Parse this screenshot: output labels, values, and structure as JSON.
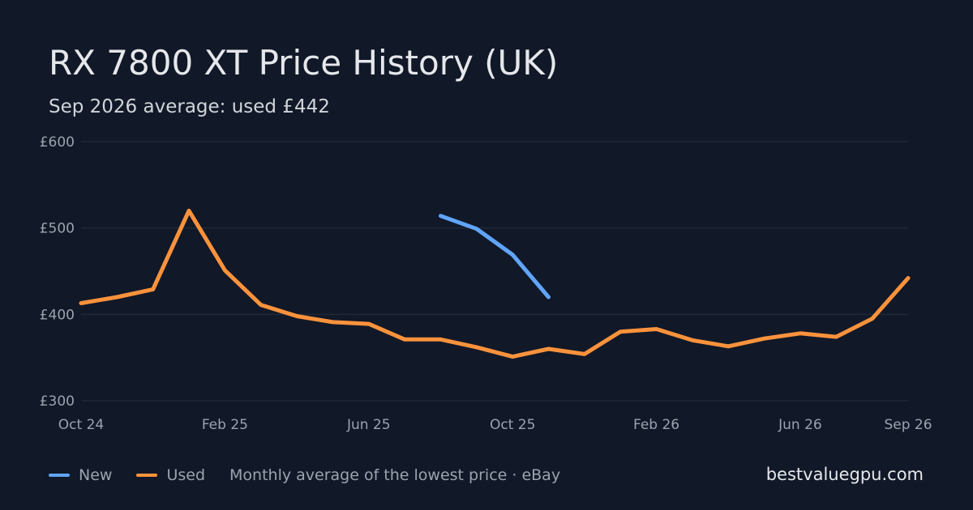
{
  "header": {
    "title": "RX 7800 XT Price History (UK)",
    "subtitle": "Sep 2026 average: used £442"
  },
  "legend": {
    "items": [
      {
        "label": "New",
        "color": "#60a5fa"
      },
      {
        "label": "Used",
        "color": "#fb923c"
      }
    ],
    "note": "Monthly average of the lowest price · eBay"
  },
  "brand": "bestvaluegpu.com",
  "colors": {
    "background": "#111827",
    "grid": "#1f2937",
    "tick_text": "#9ca3af"
  },
  "chart_data": {
    "type": "line",
    "title": "RX 7800 XT Price History (UK)",
    "subtitle": "Sep 2026 average: used £442",
    "x": [
      "Oct 24",
      "Nov 24",
      "Dec 24",
      "Jan 25",
      "Feb 25",
      "Mar 25",
      "Apr 25",
      "May 25",
      "Jun 25",
      "Jul 25",
      "Aug 25",
      "Sep 25",
      "Oct 25",
      "Nov 25",
      "Dec 25",
      "Jan 26",
      "Feb 26",
      "Mar 26",
      "Apr 26",
      "May 26",
      "Jun 26",
      "Jul 26",
      "Aug 26",
      "Sep 26"
    ],
    "x_ticks": [
      "Oct 24",
      "Feb 25",
      "Jun 25",
      "Oct 25",
      "Feb 26",
      "Jun 26",
      "Sep 26"
    ],
    "y_ticks": [
      {
        "value": 300,
        "label": "£300"
      },
      {
        "value": 400,
        "label": "£400"
      },
      {
        "value": 500,
        "label": "£500"
      },
      {
        "value": 600,
        "label": "£600"
      }
    ],
    "ylim": [
      300,
      600
    ],
    "grid": true,
    "legend_position": "bottom-left",
    "series": [
      {
        "name": "New",
        "color": "#60a5fa",
        "values": [
          null,
          null,
          null,
          null,
          null,
          null,
          null,
          null,
          null,
          null,
          514,
          499,
          469,
          420,
          null,
          null,
          null,
          null,
          null,
          null,
          null,
          null,
          null,
          null
        ]
      },
      {
        "name": "Used",
        "color": "#fb923c",
        "values": [
          413,
          420,
          429,
          520,
          451,
          411,
          398,
          391,
          389,
          371,
          371,
          362,
          351,
          360,
          354,
          380,
          383,
          370,
          363,
          372,
          378,
          374,
          395,
          442
        ]
      }
    ]
  }
}
